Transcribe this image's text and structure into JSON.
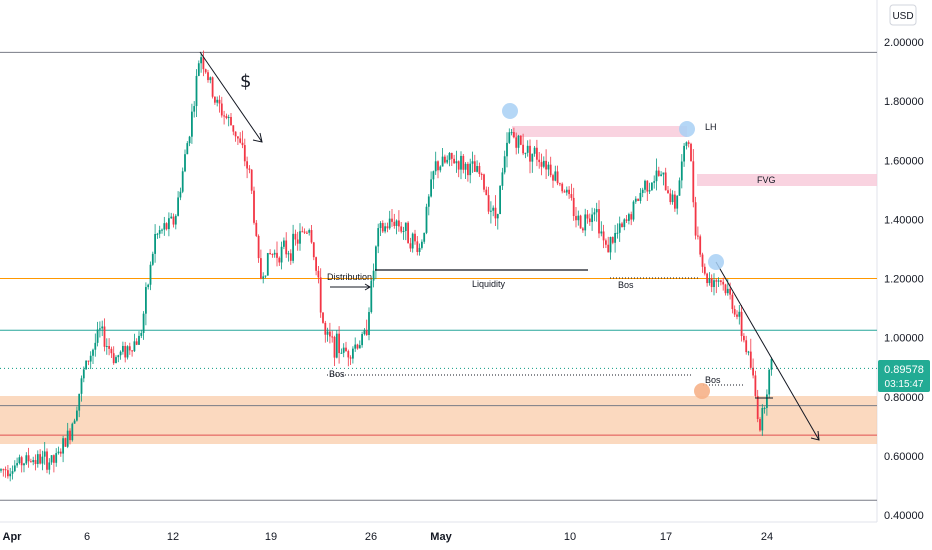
{
  "currency_button": "USD",
  "price_tag": {
    "price": "0.89578",
    "countdown": "03:15:47"
  },
  "colors": {
    "up": "#089981",
    "down": "#f23645",
    "orange_line": "#ff9800",
    "teal_line": "#26a69a",
    "zone": "#f9c9a4",
    "pink_zone": "#f8c8d8",
    "circle_blue": "#a8d0f5",
    "circle_orange": "#f6b188",
    "price_tag_bg": "#22ab94"
  },
  "chart_data": {
    "type": "candlestick",
    "y_axis": {
      "ticks": [
        "2.00000",
        "1.80000",
        "1.60000",
        "1.40000",
        "1.20000",
        "1.00000",
        "0.80000",
        "0.60000",
        "0.40000"
      ],
      "range": [
        0.36,
        2.07
      ]
    },
    "x_axis": {
      "ticks": [
        "Apr",
        "6",
        "12",
        "19",
        "26",
        "May",
        "10",
        "17",
        "24"
      ]
    },
    "series_description": "hourly candles, approx close path",
    "path": [
      [
        0,
        0.55
      ],
      [
        30,
        0.59
      ],
      [
        55,
        0.58
      ],
      [
        70,
        0.68
      ],
      [
        85,
        0.9
      ],
      [
        100,
        1.02
      ],
      [
        115,
        0.93
      ],
      [
        140,
        1.0
      ],
      [
        155,
        1.34
      ],
      [
        175,
        1.4
      ],
      [
        195,
        1.82
      ],
      [
        200,
        1.97
      ],
      [
        215,
        1.8
      ],
      [
        235,
        1.7
      ],
      [
        250,
        1.55
      ],
      [
        260,
        1.2
      ],
      [
        270,
        1.28
      ],
      [
        290,
        1.3
      ],
      [
        310,
        1.38
      ],
      [
        325,
        1.0
      ],
      [
        345,
        0.95
      ],
      [
        365,
        1.0
      ],
      [
        378,
        1.35
      ],
      [
        395,
        1.4
      ],
      [
        420,
        1.3
      ],
      [
        435,
        1.58
      ],
      [
        455,
        1.6
      ],
      [
        480,
        1.55
      ],
      [
        495,
        1.4
      ],
      [
        510,
        1.7
      ],
      [
        520,
        1.65
      ],
      [
        545,
        1.6
      ],
      [
        565,
        1.5
      ],
      [
        580,
        1.38
      ],
      [
        595,
        1.45
      ],
      [
        605,
        1.3
      ],
      [
        625,
        1.38
      ],
      [
        645,
        1.52
      ],
      [
        660,
        1.55
      ],
      [
        675,
        1.45
      ],
      [
        688,
        1.7
      ],
      [
        695,
        1.4
      ],
      [
        705,
        1.2
      ],
      [
        720,
        1.2
      ],
      [
        735,
        1.1
      ],
      [
        750,
        0.92
      ],
      [
        760,
        0.7
      ],
      [
        770,
        0.9
      ]
    ],
    "horizontal_lines": [
      {
        "price": 1.965,
        "color": "#787b86"
      },
      {
        "price": 1.2,
        "color": "#ff9800"
      },
      {
        "price": 1.025,
        "color": "#26a69a"
      },
      {
        "price": 0.77,
        "color": "#787b86"
      },
      {
        "price": 0.67,
        "color": "#e04f4f"
      },
      {
        "price": 0.45,
        "color": "#787b86"
      }
    ],
    "current_price": 0.89578,
    "annotations": {
      "dollar": "$",
      "distribution": "Distribution",
      "liquidity": "Liquidity",
      "bos": [
        "Bos",
        "Bos",
        "Bos"
      ],
      "lh": "LH",
      "fvg": "FVG"
    }
  }
}
